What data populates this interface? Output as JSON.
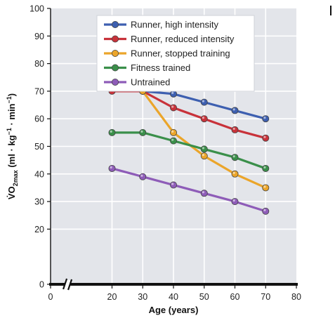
{
  "chart_data": {
    "type": "line",
    "xlabel": "Age (years)",
    "ylabel_main": "V̇O",
    "ylabel_sub": "2max",
    "ylabel_units": " (ml · kg",
    "ylabel_exp1": "−1",
    "ylabel_mid": " · min",
    "ylabel_exp2": "−1",
    "ylabel_close": ")",
    "xlim": [
      0,
      80
    ],
    "ylim": [
      0,
      100
    ],
    "xticks": [
      "0",
      "20",
      "30",
      "40",
      "50",
      "60",
      "70",
      "80"
    ],
    "xtick_values": [
      0,
      20,
      30,
      40,
      50,
      60,
      70,
      80
    ],
    "yticks": [
      "0",
      "20",
      "30",
      "40",
      "50",
      "60",
      "70",
      "80",
      "90",
      "100"
    ],
    "ytick_values": [
      0,
      20,
      30,
      40,
      50,
      60,
      70,
      80,
      90,
      100
    ],
    "grid": true,
    "axis_break": "between 0 and 20 on x-axis",
    "legend_position": "top",
    "series": [
      {
        "name": "Runner, high intensity",
        "color": "#3d5fb0",
        "x": [
          30,
          40,
          50,
          60,
          70
        ],
        "y": [
          70,
          69,
          66,
          63,
          60
        ]
      },
      {
        "name": "Runner, reduced intensity",
        "color": "#c8323a",
        "x": [
          20,
          30,
          40,
          50,
          60,
          70
        ],
        "y": [
          70,
          70,
          64,
          60,
          56,
          53
        ]
      },
      {
        "name": "Runner, stopped training",
        "color": "#eba52a",
        "x": [
          30,
          40,
          50,
          60,
          70
        ],
        "y": [
          70,
          55,
          46.5,
          40,
          35
        ]
      },
      {
        "name": "Fitness trained",
        "color": "#3a8f4a",
        "x": [
          20,
          30,
          40,
          50,
          60,
          70
        ],
        "y": [
          55,
          55,
          52,
          49,
          46,
          42
        ]
      },
      {
        "name": "Untrained",
        "color": "#8e5cb8",
        "x": [
          20,
          30,
          40,
          50,
          60,
          70
        ],
        "y": [
          42,
          39,
          36,
          33,
          30,
          26.5
        ]
      }
    ]
  }
}
